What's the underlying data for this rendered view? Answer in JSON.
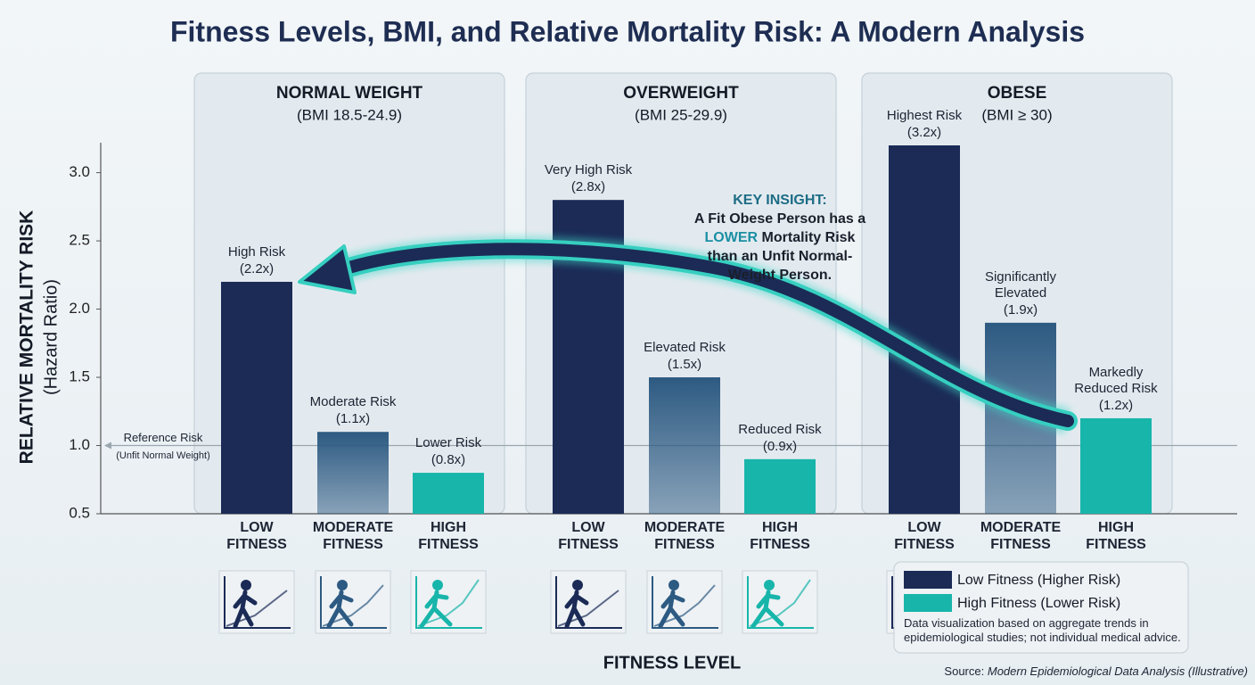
{
  "chart_data": {
    "type": "bar",
    "title": "Fitness Levels, BMI, and Relative Mortality Risk: A Modern Analysis",
    "y_label": "RELATIVE MORTALITY RISK",
    "y_sublabel": "(Hazard Ratio)",
    "x_label": "FITNESS LEVEL",
    "categories": [
      "NORMAL WEIGHT",
      "OVERWEIGHT",
      "OBESE"
    ],
    "category_subtitles": [
      "(BMI 18.5-24.9)",
      "(BMI 25-29.9)",
      "(BMI ≥ 30)"
    ],
    "fitness_levels": [
      "LOW FITNESS",
      "MODERATE FITNESS",
      "HIGH FITNESS"
    ],
    "series": [
      {
        "name": "Low Fitness (Higher Risk)",
        "color": "#1b2b56",
        "values": [
          2.2,
          2.8,
          3.2
        ],
        "risk_labels": [
          "High Risk",
          "Very High Risk",
          "Highest Risk"
        ],
        "value_labels": [
          "(2.2x)",
          "(2.8x)",
          "(3.2x)"
        ]
      },
      {
        "color": "#2d5a82",
        "gradient": true,
        "values": [
          1.1,
          1.5,
          1.9
        ],
        "risk_labels": [
          "Moderate Risk",
          "Elevated Risk",
          "Significantly Elevated"
        ],
        "value_labels": [
          "(1.1x)",
          "(1.5x)",
          "(1.9x)"
        ]
      },
      {
        "name": "High Fitness (Lower Risk)",
        "color": "#18b5aa",
        "values": [
          0.8,
          0.9,
          1.2
        ],
        "risk_labels": [
          "Lower Risk",
          "Reduced Risk",
          "Markedly Reduced Risk"
        ],
        "value_labels": [
          "(0.8x)",
          "(0.9x)",
          "(1.2x)"
        ]
      }
    ],
    "ylim": [
      0.5,
      3.2
    ],
    "yticks": [
      0.5,
      {
        "value": 1,
        "label": "1.0"
      },
      1.5,
      {
        "value": 2,
        "label": "2.0"
      },
      2.5,
      {
        "value": 3,
        "label": "3.0"
      }
    ],
    "reference_line": {
      "value": 1,
      "label": "Reference Risk",
      "sublabel": "(Unfit Normal Weight)"
    },
    "insight": {
      "heading": "KEY INSIGHT:",
      "lines": [
        "A Fit Obese Person has a",
        "LOWER",
        "Mortality Risk",
        "than an Unfit Normal-",
        "Weight Person."
      ]
    },
    "legend_note": "Data visualization based on aggregate trends in epidemiological studies; not individual medical advice.",
    "source_prefix": "Source:",
    "source": "Modern Epidemiological Data Analysis (Illustrative)"
  }
}
